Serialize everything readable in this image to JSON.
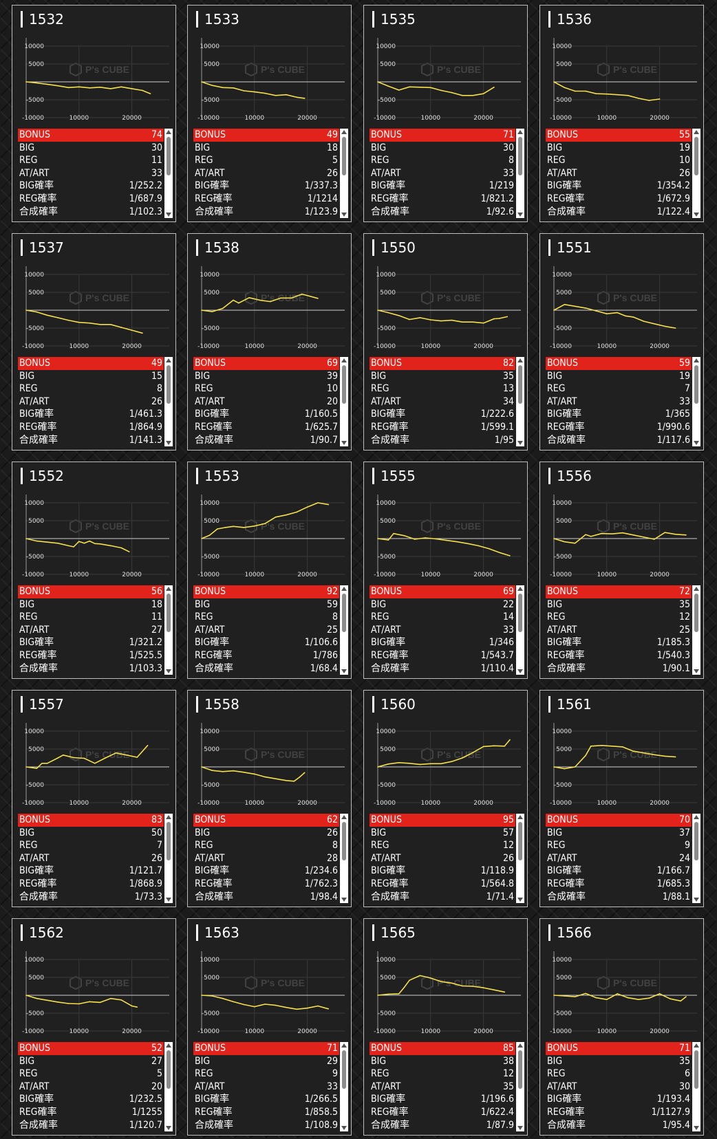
{
  "labels": {
    "bonus": "BONUS",
    "big": "BIG",
    "reg": "REG",
    "atart": "AT/ART",
    "big_rate": "BIG確率",
    "reg_rate": "REG確率",
    "total_rate": "合成確率"
  },
  "watermark": {
    "brand": "P's CUBE"
  },
  "colors": {
    "line": "#f4e04d",
    "bonus_bar": "#e1231b",
    "panel": "#202020",
    "border": "#bdbdbd"
  },
  "machines": [
    {
      "number": "1532",
      "stats": {
        "bonus": "74",
        "big": "30",
        "reg": "11",
        "atart": "33",
        "big_rate": "1/252.2",
        "reg_rate": "1/687.9",
        "total_rate": "1/102.3"
      }
    },
    {
      "number": "1533",
      "stats": {
        "bonus": "49",
        "big": "18",
        "reg": "5",
        "atart": "26",
        "big_rate": "1/337.3",
        "reg_rate": "1/1214",
        "total_rate": "1/123.9"
      }
    },
    {
      "number": "1535",
      "stats": {
        "bonus": "71",
        "big": "30",
        "reg": "8",
        "atart": "33",
        "big_rate": "1/219",
        "reg_rate": "1/821.2",
        "total_rate": "1/92.6"
      }
    },
    {
      "number": "1536",
      "stats": {
        "bonus": "55",
        "big": "19",
        "reg": "10",
        "atart": "26",
        "big_rate": "1/354.2",
        "reg_rate": "1/672.9",
        "total_rate": "1/122.4"
      }
    },
    {
      "number": "1537",
      "stats": {
        "bonus": "49",
        "big": "15",
        "reg": "8",
        "atart": "26",
        "big_rate": "1/461.3",
        "reg_rate": "1/864.9",
        "total_rate": "1/141.3"
      }
    },
    {
      "number": "1538",
      "stats": {
        "bonus": "69",
        "big": "39",
        "reg": "10",
        "atart": "20",
        "big_rate": "1/160.5",
        "reg_rate": "1/625.7",
        "total_rate": "1/90.7"
      }
    },
    {
      "number": "1550",
      "stats": {
        "bonus": "82",
        "big": "35",
        "reg": "13",
        "atart": "34",
        "big_rate": "1/222.6",
        "reg_rate": "1/599.1",
        "total_rate": "1/95"
      }
    },
    {
      "number": "1551",
      "stats": {
        "bonus": "59",
        "big": "19",
        "reg": "7",
        "atart": "33",
        "big_rate": "1/365",
        "reg_rate": "1/990.6",
        "total_rate": "1/117.6"
      }
    },
    {
      "number": "1552",
      "stats": {
        "bonus": "56",
        "big": "18",
        "reg": "11",
        "atart": "27",
        "big_rate": "1/321.2",
        "reg_rate": "1/525.5",
        "total_rate": "1/103.3"
      }
    },
    {
      "number": "1553",
      "stats": {
        "bonus": "92",
        "big": "59",
        "reg": "8",
        "atart": "25",
        "big_rate": "1/106.6",
        "reg_rate": "1/786",
        "total_rate": "1/68.4"
      }
    },
    {
      "number": "1555",
      "stats": {
        "bonus": "69",
        "big": "22",
        "reg": "14",
        "atart": "33",
        "big_rate": "1/346",
        "reg_rate": "1/543.7",
        "total_rate": "1/110.4"
      }
    },
    {
      "number": "1556",
      "stats": {
        "bonus": "72",
        "big": "35",
        "reg": "12",
        "atart": "25",
        "big_rate": "1/185.3",
        "reg_rate": "1/540.3",
        "total_rate": "1/90.1"
      }
    },
    {
      "number": "1557",
      "stats": {
        "bonus": "83",
        "big": "50",
        "reg": "7",
        "atart": "26",
        "big_rate": "1/121.7",
        "reg_rate": "1/868.9",
        "total_rate": "1/73.3"
      }
    },
    {
      "number": "1558",
      "stats": {
        "bonus": "62",
        "big": "26",
        "reg": "8",
        "atart": "28",
        "big_rate": "1/234.6",
        "reg_rate": "1/762.3",
        "total_rate": "1/98.4"
      }
    },
    {
      "number": "1560",
      "stats": {
        "bonus": "95",
        "big": "57",
        "reg": "12",
        "atart": "26",
        "big_rate": "1/118.9",
        "reg_rate": "1/564.8",
        "total_rate": "1/71.4"
      }
    },
    {
      "number": "1561",
      "stats": {
        "bonus": "70",
        "big": "37",
        "reg": "9",
        "atart": "24",
        "big_rate": "1/166.7",
        "reg_rate": "1/685.3",
        "total_rate": "1/88.1"
      }
    },
    {
      "number": "1562",
      "stats": {
        "bonus": "52",
        "big": "27",
        "reg": "5",
        "atart": "20",
        "big_rate": "1/232.5",
        "reg_rate": "1/1255",
        "total_rate": "1/120.7"
      }
    },
    {
      "number": "1563",
      "stats": {
        "bonus": "71",
        "big": "29",
        "reg": "9",
        "atart": "33",
        "big_rate": "1/266.5",
        "reg_rate": "1/858.5",
        "total_rate": "1/108.9"
      }
    },
    {
      "number": "1565",
      "stats": {
        "bonus": "85",
        "big": "38",
        "reg": "12",
        "atart": "35",
        "big_rate": "1/196.6",
        "reg_rate": "1/622.4",
        "total_rate": "1/87.9"
      }
    },
    {
      "number": "1566",
      "stats": {
        "bonus": "71",
        "big": "35",
        "reg": "6",
        "atart": "30",
        "big_rate": "1/193.4",
        "reg_rate": "1/1127.9",
        "total_rate": "1/95.4"
      }
    }
  ],
  "chart_data": {
    "type": "line",
    "xlim": [
      0,
      26000
    ],
    "ylim": [
      -10000,
      10000
    ],
    "x_ticks": [
      "10000",
      "20000"
    ],
    "y_ticks": [
      "10000",
      "5000",
      "-5000",
      "-10000"
    ],
    "grid": true,
    "charts": [
      {
        "machine": "1532",
        "x": [
          0,
          2000,
          4000,
          6000,
          8000,
          10000,
          12000,
          14000,
          16000,
          18000,
          20000,
          22000,
          23500
        ],
        "y": [
          0,
          -300,
          -700,
          -1100,
          -1600,
          -1400,
          -1700,
          -1500,
          -1900,
          -1400,
          -1900,
          -2400,
          -3300
        ]
      },
      {
        "machine": "1533",
        "x": [
          0,
          2000,
          4000,
          6000,
          8000,
          10000,
          12000,
          14000,
          16000,
          18000,
          19500
        ],
        "y": [
          0,
          -1000,
          -1600,
          -1700,
          -2500,
          -2800,
          -3200,
          -3800,
          -3600,
          -4300,
          -4600
        ]
      },
      {
        "machine": "1535",
        "x": [
          0,
          2000,
          4000,
          6000,
          8000,
          10000,
          12000,
          14000,
          16000,
          18000,
          20000,
          22000
        ],
        "y": [
          0,
          -1200,
          -2300,
          -1400,
          -1500,
          -1600,
          -2400,
          -3000,
          -3800,
          -3800,
          -3300,
          -1500
        ]
      },
      {
        "machine": "1536",
        "x": [
          0,
          2000,
          4000,
          6000,
          8000,
          10000,
          12000,
          14000,
          16000,
          18000,
          20000
        ],
        "y": [
          0,
          -1600,
          -2600,
          -2600,
          -3300,
          -3400,
          -3600,
          -3800,
          -4600,
          -5200,
          -4800
        ]
      },
      {
        "machine": "1537",
        "x": [
          0,
          2000,
          4000,
          6000,
          8000,
          10000,
          12000,
          14000,
          16000,
          18000,
          20000,
          22000
        ],
        "y": [
          0,
          -500,
          -1400,
          -2100,
          -2800,
          -3400,
          -3600,
          -4000,
          -4000,
          -4800,
          -5600,
          -6400
        ]
      },
      {
        "machine": "1538",
        "x": [
          0,
          2000,
          4000,
          6000,
          7000,
          9000,
          11000,
          13000,
          15000,
          17000,
          19000,
          22000
        ],
        "y": [
          0,
          -400,
          500,
          2800,
          2000,
          3500,
          2800,
          2400,
          3400,
          3400,
          4500,
          3300
        ]
      },
      {
        "machine": "1550",
        "x": [
          0,
          2000,
          4000,
          6000,
          8000,
          10000,
          12000,
          14000,
          16000,
          18000,
          20000,
          22000,
          23000,
          24500
        ],
        "y": [
          0,
          -700,
          -1500,
          -2600,
          -2100,
          -2700,
          -3000,
          -2800,
          -3300,
          -3300,
          -3600,
          -2400,
          -2300,
          -1800
        ]
      },
      {
        "machine": "1551",
        "x": [
          0,
          2000,
          4000,
          6000,
          8000,
          10000,
          12000,
          13500,
          15000,
          17000,
          19000,
          21000,
          23000
        ],
        "y": [
          0,
          1600,
          1100,
          600,
          -200,
          -1000,
          -700,
          -1600,
          -1900,
          -3100,
          -3800,
          -4500,
          -5000
        ]
      },
      {
        "machine": "1552",
        "x": [
          0,
          2000,
          4000,
          6000,
          8000,
          9000,
          10000,
          11000,
          12000,
          13000,
          14000,
          16000,
          18000,
          19500
        ],
        "y": [
          0,
          -700,
          -1000,
          -1300,
          -2000,
          -2300,
          -800,
          -1300,
          -700,
          -1400,
          -1500,
          -2000,
          -2600,
          -3700
        ]
      },
      {
        "machine": "1553",
        "x": [
          0,
          1500,
          3000,
          4500,
          6000,
          8000,
          10000,
          12000,
          14000,
          16000,
          18000,
          20000,
          22000,
          24000
        ],
        "y": [
          0,
          900,
          2700,
          3100,
          3400,
          3100,
          3500,
          4200,
          6000,
          6600,
          7400,
          8800,
          10000,
          9500
        ]
      },
      {
        "machine": "1555",
        "x": [
          0,
          2000,
          3000,
          5000,
          7000,
          9000,
          11000,
          13000,
          15000,
          17000,
          19000,
          21000,
          23000,
          25000
        ],
        "y": [
          0,
          -400,
          1400,
          800,
          -200,
          200,
          -100,
          -500,
          -900,
          -1400,
          -2000,
          -2800,
          -3900,
          -4800
        ]
      },
      {
        "machine": "1556",
        "x": [
          0,
          2000,
          4000,
          5000,
          6000,
          7000,
          9000,
          11000,
          13000,
          15000,
          17000,
          19000,
          21000,
          23000,
          25000
        ],
        "y": [
          0,
          -900,
          -1300,
          -100,
          1100,
          600,
          1400,
          1300,
          1600,
          1000,
          400,
          -200,
          1700,
          1200,
          1000
        ]
      },
      {
        "machine": "1557",
        "x": [
          0,
          2000,
          3000,
          4000,
          6000,
          7000,
          9000,
          11000,
          13000,
          15000,
          17000,
          19000,
          21000,
          23000
        ],
        "y": [
          0,
          -400,
          1000,
          1000,
          2500,
          3300,
          2600,
          2400,
          1000,
          2500,
          3900,
          3300,
          2700,
          6000
        ]
      },
      {
        "machine": "1558",
        "x": [
          0,
          2000,
          4000,
          6000,
          8000,
          10000,
          12000,
          14000,
          16000,
          17500,
          18500,
          19500
        ],
        "y": [
          0,
          -1000,
          -1300,
          -1100,
          -1500,
          -2000,
          -2800,
          -3300,
          -3800,
          -4000,
          -2900,
          -1600
        ]
      },
      {
        "machine": "1560",
        "x": [
          0,
          2000,
          4000,
          6000,
          8000,
          10000,
          12000,
          14000,
          16000,
          18000,
          20000,
          22000,
          24000,
          25000
        ],
        "y": [
          0,
          800,
          1200,
          1000,
          700,
          900,
          900,
          1500,
          2500,
          4000,
          5700,
          5900,
          5800,
          7600
        ]
      },
      {
        "machine": "1561",
        "x": [
          0,
          2000,
          4000,
          6000,
          7000,
          9000,
          11000,
          13000,
          15000,
          17000,
          19000,
          21000,
          23000
        ],
        "y": [
          0,
          -500,
          0,
          3200,
          5800,
          6000,
          5800,
          5600,
          4400,
          3900,
          3400,
          3000,
          2800
        ]
      },
      {
        "machine": "1562",
        "x": [
          0,
          2000,
          4000,
          6000,
          8000,
          10000,
          12000,
          14000,
          16000,
          18000,
          20000,
          21000
        ],
        "y": [
          0,
          -900,
          -1400,
          -1900,
          -2300,
          -2400,
          -1800,
          -2000,
          -900,
          -1300,
          -3000,
          -3300
        ]
      },
      {
        "machine": "1563",
        "x": [
          0,
          2000,
          4000,
          6000,
          8000,
          10000,
          12000,
          14000,
          16000,
          18000,
          20000,
          22000,
          24000
        ],
        "y": [
          0,
          -200,
          -900,
          -1800,
          -2600,
          -3200,
          -2500,
          -2800,
          -3400,
          -3900,
          -3600,
          -3000,
          -3800
        ]
      },
      {
        "machine": "1565",
        "x": [
          0,
          2000,
          4000,
          5000,
          6000,
          8000,
          10000,
          12000,
          14000,
          16000,
          18000,
          20000,
          22000,
          24000
        ],
        "y": [
          0,
          300,
          400,
          2200,
          4200,
          5500,
          4800,
          3800,
          3400,
          2600,
          2500,
          2100,
          1500,
          900
        ]
      },
      {
        "machine": "1566",
        "x": [
          0,
          2000,
          4000,
          6000,
          8000,
          10000,
          12000,
          14000,
          16000,
          18000,
          20000,
          22000,
          24000,
          25000
        ],
        "y": [
          0,
          -200,
          -400,
          500,
          -700,
          -1200,
          400,
          -700,
          -1200,
          -800,
          400,
          -1000,
          -1600,
          -400
        ]
      }
    ]
  }
}
